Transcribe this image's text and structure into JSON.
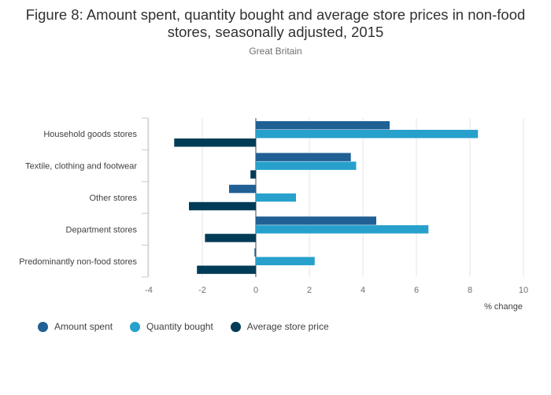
{
  "title": "Figure 8: Amount spent, quantity bought and average store prices in non-food stores, seasonally adjusted, 2015",
  "subtitle": "Great Britain",
  "chart_data": {
    "type": "bar",
    "orientation": "horizontal",
    "categories": [
      "Household goods stores",
      "Textile, clothing and footwear",
      "Other stores",
      "Department stores",
      "Predominantly non-food stores"
    ],
    "series": [
      {
        "name": "Amount spent",
        "color": "#206095",
        "values": [
          5.0,
          3.55,
          -1.0,
          4.5,
          -0.05
        ]
      },
      {
        "name": "Quantity bought",
        "color": "#27a0cc",
        "values": [
          8.3,
          3.75,
          1.5,
          6.45,
          2.2
        ]
      },
      {
        "name": "Average store price",
        "color": "#003c57",
        "values": [
          -3.05,
          -0.2,
          -2.5,
          -1.9,
          -2.2
        ]
      }
    ],
    "xlim": [
      -4,
      10
    ],
    "xticks": [
      "-4",
      "-2",
      "0",
      "2",
      "4",
      "6",
      "8",
      "10"
    ],
    "xlabel": "% change",
    "ylabel": "",
    "legend_position": "bottom-left"
  }
}
